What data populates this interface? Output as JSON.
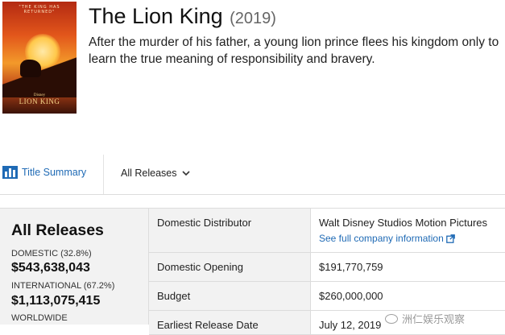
{
  "header": {
    "title": "The Lion King",
    "year": "(2019)",
    "synopsis": "After the murder of his father, a young lion prince flees his kingdom only to learn the true meaning of responsibility and bravery.",
    "poster": {
      "top_text": "\"THE KING HAS RETURNED\"",
      "studio": "Disney",
      "logo_text": "LION KING"
    }
  },
  "tabs": {
    "title_summary": "Title Summary",
    "all_releases": "All Releases"
  },
  "summary": {
    "heading": "All Releases",
    "domestic_label": "DOMESTIC (32.8%)",
    "domestic_value": "$543,638,043",
    "international_label": "INTERNATIONAL (67.2%)",
    "international_value": "$1,113,075,415",
    "worldwide_label": "WORLDWIDE"
  },
  "details": {
    "distributor_label": "Domestic Distributor",
    "distributor_value": "Walt Disney Studios Motion Pictures",
    "company_link": "See full company information",
    "opening_label": "Domestic Opening",
    "opening_value": "$191,770,759",
    "budget_label": "Budget",
    "budget_value": "$260,000,000",
    "release_label": "Earliest Release Date",
    "release_value": "July 12, 2019"
  },
  "watermark": {
    "text": "洲仁娱乐观察"
  },
  "colors": {
    "link": "#1f6ab5",
    "panel": "#f2f2f2",
    "border": "#dcdcdc"
  }
}
